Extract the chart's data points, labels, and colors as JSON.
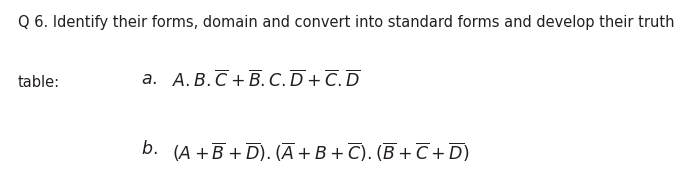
{
  "title_line1": "Q 6. Identify their forms, domain and convert into standard forms and develop their truth",
  "title_line2": "table:",
  "background_color": "#ffffff",
  "text_color": "#231f20",
  "font_size_title": 10.5,
  "font_size_expr": 12.5,
  "expr_a": "$\\mathit{A.B.}\\overline{\\mathit{C}}+\\overline{\\mathit{B}}\\mathit{.C.}\\overline{\\mathit{D}}+\\overline{\\mathit{C}}\\mathit{.}\\overline{\\mathit{D}}$",
  "expr_b": "$(\\mathit{A}+\\overline{\\mathit{B}}+\\overline{\\mathit{D}}).(\\overline{\\mathit{A}}+\\mathit{B}+\\overline{\\mathit{C}}).(\\overline{\\mathit{B}}+\\overline{\\mathit{C}}+\\overline{\\mathit{D}})$"
}
